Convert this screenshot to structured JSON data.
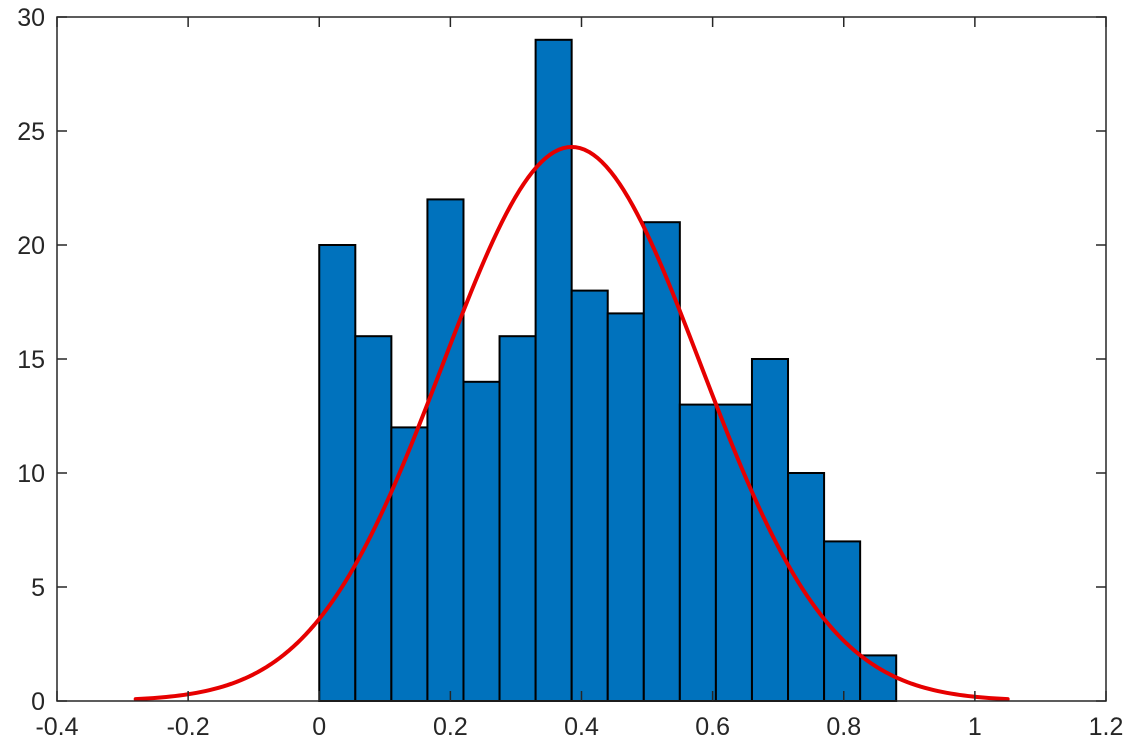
{
  "chart_data": {
    "type": "bar",
    "subtype": "histogram-with-fitted-normal-curve",
    "title": "",
    "xlabel": "",
    "ylabel": "",
    "xlim": [
      -0.4,
      1.2
    ],
    "ylim": [
      0,
      30
    ],
    "x_ticks": [
      "-0.4",
      "-0.2",
      "0",
      "0.2",
      "0.4",
      "0.6",
      "0.8",
      "1",
      "1.2"
    ],
    "y_ticks": [
      "0",
      "5",
      "10",
      "15",
      "20",
      "25",
      "30"
    ],
    "grid": false,
    "legend": "none",
    "box": true,
    "bin_edges": [
      0.0,
      0.055,
      0.11,
      0.165,
      0.22,
      0.275,
      0.33,
      0.385,
      0.44,
      0.495,
      0.55,
      0.605,
      0.66,
      0.715,
      0.77,
      0.825,
      0.88
    ],
    "values": [
      20,
      16,
      12,
      22,
      14,
      16,
      29,
      18,
      17,
      21,
      13,
      13,
      15,
      10,
      7,
      2
    ],
    "fit": {
      "distribution": "normal",
      "mean": 0.385,
      "std": 0.197,
      "peak": 24.3,
      "x_range": [
        -0.28,
        1.05
      ]
    },
    "colors": {
      "bar_fill": "#0072BD",
      "bar_edge": "#000000",
      "fit_line": "#E60000",
      "axes": "#262626"
    }
  }
}
